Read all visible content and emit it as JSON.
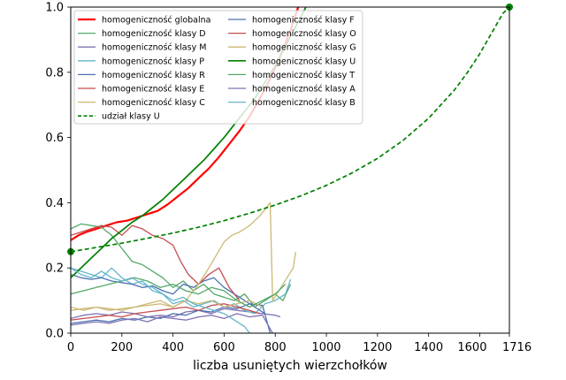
{
  "chart_data": {
    "type": "line",
    "title": "",
    "xlabel": "liczba usuniętych wierzchołków",
    "ylabel": "",
    "xlim": [
      0,
      1716
    ],
    "ylim": [
      0.0,
      1.0
    ],
    "x_ticks": [
      0,
      200,
      400,
      600,
      800,
      1000,
      1200,
      1400,
      1600,
      1716
    ],
    "y_ticks": [
      0.0,
      0.2,
      0.4,
      0.6,
      0.8,
      1.0
    ],
    "grid": false,
    "legend_position": "top-left",
    "legend_columns": 2,
    "series": [
      {
        "name": "homogeniczność globalna",
        "color": "#ff0000",
        "width": 2.2,
        "style": "solid",
        "x": [
          0,
          30,
          60,
          100,
          140,
          180,
          220,
          260,
          300,
          340,
          380,
          420,
          460,
          500,
          540,
          580,
          620,
          660,
          700,
          740,
          780,
          820,
          860,
          890
        ],
        "y": [
          0.285,
          0.3,
          0.31,
          0.32,
          0.33,
          0.34,
          0.345,
          0.355,
          0.365,
          0.375,
          0.395,
          0.42,
          0.445,
          0.475,
          0.505,
          0.54,
          0.58,
          0.62,
          0.665,
          0.72,
          0.78,
          0.85,
          0.93,
          1.0
        ]
      },
      {
        "name": "homogeniczność klasy D",
        "color": "#55a868",
        "width": 1.3,
        "style": "solid",
        "x": [
          0,
          40,
          80,
          120,
          160,
          200,
          240,
          280,
          320,
          360,
          400,
          440,
          480,
          520,
          560,
          600,
          640,
          680,
          720,
          760,
          800,
          830,
          860
        ],
        "y": [
          0.32,
          0.335,
          0.33,
          0.325,
          0.3,
          0.26,
          0.22,
          0.21,
          0.19,
          0.17,
          0.14,
          0.16,
          0.13,
          0.15,
          0.12,
          0.11,
          0.1,
          0.12,
          0.08,
          0.1,
          0.12,
          0.1,
          0.15
        ]
      },
      {
        "name": "homogeniczność klasy M",
        "color": "#8172b2",
        "width": 1.3,
        "style": "solid",
        "x": [
          0,
          50,
          100,
          150,
          200,
          250,
          300,
          350,
          400,
          450,
          500,
          550,
          600,
          650,
          700,
          750,
          800,
          820
        ],
        "y": [
          0.045,
          0.055,
          0.06,
          0.055,
          0.065,
          0.06,
          0.05,
          0.055,
          0.05,
          0.065,
          0.07,
          0.06,
          0.075,
          0.07,
          0.065,
          0.06,
          0.055,
          0.05
        ]
      },
      {
        "name": "homogeniczność klasy P",
        "color": "#64b5cd",
        "width": 1.3,
        "style": "solid",
        "x": [
          0,
          40,
          80,
          120,
          160,
          200,
          240,
          280,
          320,
          360,
          400,
          440,
          480,
          520,
          560,
          600,
          640,
          680,
          720,
          760,
          800,
          840,
          860
        ],
        "y": [
          0.2,
          0.19,
          0.18,
          0.17,
          0.2,
          0.17,
          0.15,
          0.16,
          0.13,
          0.12,
          0.09,
          0.1,
          0.08,
          0.09,
          0.1,
          0.08,
          0.09,
          0.07,
          0.06,
          0.09,
          0.1,
          0.12,
          0.165
        ]
      },
      {
        "name": "homogeniczność klasy R",
        "color": "#4c72b0",
        "width": 1.3,
        "style": "solid",
        "x": [
          0,
          40,
          80,
          120,
          160,
          200,
          240,
          280,
          320,
          360,
          400,
          440,
          480,
          520,
          560,
          600,
          640,
          680,
          720,
          760
        ],
        "y": [
          0.18,
          0.17,
          0.165,
          0.17,
          0.16,
          0.155,
          0.15,
          0.14,
          0.145,
          0.13,
          0.12,
          0.15,
          0.14,
          0.16,
          0.17,
          0.14,
          0.12,
          0.1,
          0.08,
          0.06
        ]
      },
      {
        "name": "homogeniczność klasy E",
        "color": "#c44e52",
        "width": 1.3,
        "style": "solid",
        "x": [
          0,
          40,
          80,
          120,
          160,
          200,
          240,
          280,
          320,
          360,
          400,
          430,
          460,
          500,
          540,
          580,
          620,
          640,
          660
        ],
        "y": [
          0.3,
          0.31,
          0.32,
          0.33,
          0.325,
          0.3,
          0.33,
          0.32,
          0.3,
          0.29,
          0.27,
          0.22,
          0.18,
          0.15,
          0.18,
          0.2,
          0.14,
          0.12,
          0.1
        ]
      },
      {
        "name": "homogeniczność klasy C",
        "color": "#ccb974",
        "width": 1.3,
        "style": "solid",
        "x": [
          0,
          50,
          100,
          150,
          200,
          250,
          300,
          350,
          400,
          450,
          500,
          540,
          570,
          600,
          630,
          660,
          700,
          740,
          780,
          790,
          870,
          880
        ],
        "y": [
          0.07,
          0.075,
          0.08,
          0.07,
          0.075,
          0.08,
          0.085,
          0.09,
          0.08,
          0.1,
          0.15,
          0.2,
          0.24,
          0.28,
          0.3,
          0.31,
          0.33,
          0.36,
          0.4,
          0.1,
          0.2,
          0.25
        ]
      },
      {
        "name": "udział klasy U",
        "color": "#008000",
        "width": 1.7,
        "style": "dashed",
        "x": [
          0,
          100,
          200,
          300,
          400,
          500,
          600,
          700,
          800,
          900,
          1000,
          1100,
          1200,
          1300,
          1400,
          1500,
          1550,
          1600,
          1650,
          1690,
          1716
        ],
        "y": [
          0.25,
          0.263,
          0.276,
          0.291,
          0.307,
          0.325,
          0.345,
          0.368,
          0.393,
          0.421,
          0.453,
          0.491,
          0.536,
          0.591,
          0.659,
          0.745,
          0.797,
          0.857,
          0.925,
          0.98,
          1.0
        ]
      },
      {
        "name": "homogeniczność klasy F",
        "color": "#4c72b0",
        "width": 1.3,
        "style": "solid",
        "x": [
          0,
          50,
          100,
          150,
          200,
          250,
          300,
          350,
          400,
          450,
          500,
          550,
          600,
          650,
          700,
          750,
          780
        ],
        "y": [
          0.03,
          0.035,
          0.04,
          0.035,
          0.045,
          0.04,
          0.05,
          0.045,
          0.06,
          0.055,
          0.07,
          0.065,
          0.08,
          0.075,
          0.09,
          0.085,
          0.0
        ]
      },
      {
        "name": "homogeniczność klasy O",
        "color": "#c44e52",
        "width": 1.3,
        "style": "solid",
        "x": [
          0,
          50,
          100,
          150,
          200,
          250,
          300,
          350,
          400,
          450,
          500,
          550,
          600,
          650,
          700,
          740
        ],
        "y": [
          0.04,
          0.045,
          0.05,
          0.055,
          0.05,
          0.06,
          0.065,
          0.07,
          0.075,
          0.08,
          0.07,
          0.085,
          0.09,
          0.08,
          0.07,
          0.06
        ]
      },
      {
        "name": "homogeniczność klasy G",
        "color": "#ccb974",
        "width": 1.3,
        "style": "solid",
        "x": [
          0,
          50,
          100,
          150,
          200,
          250,
          300,
          350,
          400,
          450,
          500,
          550,
          600,
          650,
          700,
          750
        ],
        "y": [
          0.08,
          0.07,
          0.08,
          0.075,
          0.07,
          0.08,
          0.09,
          0.1,
          0.08,
          0.1,
          0.09,
          0.1,
          0.08,
          0.09,
          0.1,
          0.08
        ]
      },
      {
        "name": "homogeniczność klasy U",
        "color": "#008000",
        "width": 1.7,
        "style": "solid",
        "x": [
          0,
          40,
          80,
          120,
          160,
          200,
          240,
          280,
          320,
          360,
          400,
          440,
          480,
          520,
          560,
          600,
          640,
          680,
          720,
          760,
          800,
          840,
          880,
          920
        ],
        "y": [
          0.17,
          0.2,
          0.23,
          0.26,
          0.29,
          0.315,
          0.34,
          0.36,
          0.385,
          0.41,
          0.44,
          0.47,
          0.5,
          0.53,
          0.565,
          0.6,
          0.64,
          0.68,
          0.72,
          0.77,
          0.82,
          0.88,
          0.94,
          1.0
        ]
      },
      {
        "name": "homogeniczność klasy T",
        "color": "#55a868",
        "width": 1.3,
        "style": "solid",
        "x": [
          0,
          50,
          100,
          150,
          200,
          250,
          300,
          350,
          400,
          450,
          500,
          550,
          600,
          650,
          700,
          750,
          800,
          840
        ],
        "y": [
          0.12,
          0.13,
          0.14,
          0.15,
          0.16,
          0.17,
          0.16,
          0.14,
          0.15,
          0.13,
          0.12,
          0.14,
          0.13,
          0.1,
          0.08,
          0.1,
          0.12,
          0.15
        ]
      },
      {
        "name": "homogeniczność klasy A",
        "color": "#8172b2",
        "width": 1.3,
        "style": "solid",
        "x": [
          0,
          50,
          100,
          150,
          200,
          250,
          300,
          350,
          400,
          450,
          500,
          550,
          600,
          650,
          700,
          750,
          790
        ],
        "y": [
          0.025,
          0.03,
          0.035,
          0.03,
          0.04,
          0.045,
          0.035,
          0.05,
          0.045,
          0.04,
          0.05,
          0.055,
          0.045,
          0.06,
          0.05,
          0.055,
          0.0
        ]
      },
      {
        "name": "homogeniczność klasy B",
        "color": "#64b5cd",
        "width": 1.3,
        "style": "solid",
        "x": [
          0,
          40,
          80,
          120,
          160,
          200,
          240,
          280,
          320,
          360,
          400,
          440,
          480,
          520,
          560,
          600,
          640,
          680,
          700
        ],
        "y": [
          0.2,
          0.18,
          0.17,
          0.19,
          0.17,
          0.16,
          0.17,
          0.15,
          0.14,
          0.12,
          0.1,
          0.11,
          0.09,
          0.08,
          0.07,
          0.06,
          0.04,
          0.02,
          0.0
        ]
      }
    ],
    "markers": [
      {
        "x": 0,
        "y": 0.25,
        "color": "#008000"
      },
      {
        "x": 1716,
        "y": 1.0,
        "color": "#008000"
      }
    ]
  }
}
